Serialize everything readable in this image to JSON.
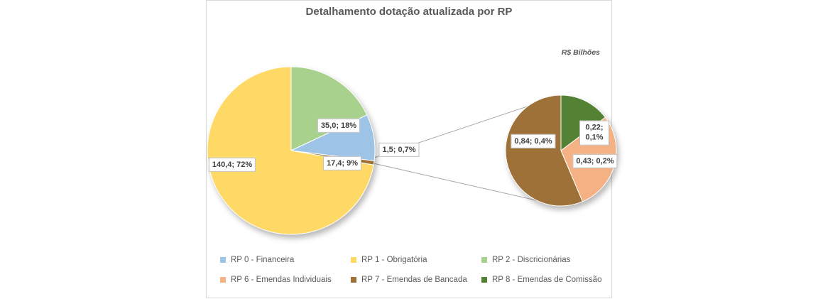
{
  "chart_data": {
    "type": "pie",
    "variant": "pie-of-pie",
    "title": "Detalhamento dotação atualizada por RP",
    "units_note": "R$ Bilhões",
    "legend_position": "bottom",
    "main_pie": {
      "slices": [
        {
          "name": "RP 2 - Discricionárias",
          "value": 35.0,
          "percent": "18%",
          "label": "35,0; 18%",
          "color": "#A9D18E"
        },
        {
          "name": "RP 0 - Financeira",
          "value": 17.4,
          "percent": "9%",
          "label": "17,4; 9%",
          "color": "#9DC3E6"
        },
        {
          "name": "",
          "value": 1.5,
          "percent": "0,7%",
          "label": "1,5; 0,7%",
          "color": "#9E7139"
        },
        {
          "name": "RP 1 - Obrigatória",
          "value": 140.4,
          "percent": "72%",
          "label": "140,4; 72%",
          "color": "#FFD966"
        }
      ]
    },
    "secondary_pie": {
      "slices": [
        {
          "name": "RP 8 - Emendas de Comissão",
          "value": 0.22,
          "percent": "0,1%",
          "label": "0,22; 0,1%",
          "color": "#548235"
        },
        {
          "name": "RP 6 - Emendas Individuais",
          "value": 0.43,
          "percent": "0,2%",
          "label": "0,43; 0,2%",
          "color": "#F4B183"
        },
        {
          "name": "RP 7 - Emendas de Bancada",
          "value": 0.84,
          "percent": "0,4%",
          "label": "0,84; 0,4%",
          "color": "#9E7139"
        }
      ]
    },
    "legend": [
      {
        "label": "RP 0 - Financeira",
        "color": "#9DC3E6"
      },
      {
        "label": "RP 1 - Obrigatória",
        "color": "#FFD966"
      },
      {
        "label": "RP 2 - Discricionárias",
        "color": "#A9D18E"
      },
      {
        "label": "RP 6 - Emendas Individuais",
        "color": "#F4B183"
      },
      {
        "label": "RP 7 - Emendas de Bancada",
        "color": "#9E7139"
      },
      {
        "label": "RP 8 - Emendas de Comissão",
        "color": "#548235"
      }
    ]
  }
}
